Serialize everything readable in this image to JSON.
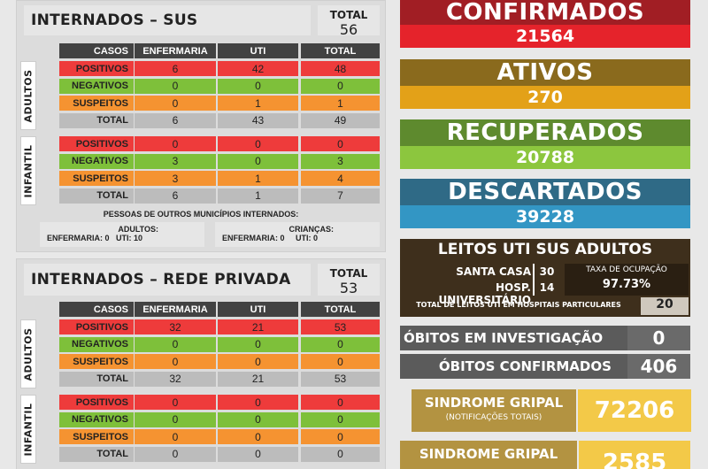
{
  "sus": {
    "title": "INTERNADOS – SUS",
    "total_label": "TOTAL",
    "total_value": "56",
    "headers": [
      "CASOS",
      "ENFERMARIA",
      "UTI",
      "TOTAL"
    ],
    "group_adult": "ADULTOS",
    "group_child": "INFANTIL",
    "adult_rows": [
      {
        "label": "POSITIVOS",
        "enf": "6",
        "uti": "42",
        "total": "48"
      },
      {
        "label": "NEGATIVOS",
        "enf": "0",
        "uti": "0",
        "total": "0"
      },
      {
        "label": "SUSPEITOS",
        "enf": "0",
        "uti": "1",
        "total": "1"
      },
      {
        "label": "TOTAL",
        "enf": "6",
        "uti": "43",
        "total": "49"
      }
    ],
    "child_rows": [
      {
        "label": "POSITIVOS",
        "enf": "0",
        "uti": "0",
        "total": "0"
      },
      {
        "label": "NEGATIVOS",
        "enf": "3",
        "uti": "0",
        "total": "3"
      },
      {
        "label": "SUSPEITOS",
        "enf": "3",
        "uti": "1",
        "total": "4"
      },
      {
        "label": "TOTAL",
        "enf": "6",
        "uti": "1",
        "total": "7"
      }
    ],
    "others_note": "PESSOAS DE OUTROS MUNICÍPIOS INTERNADOS:",
    "others_adults_label": "ADULTOS:",
    "others_adults_line": "ENFERMARIA: 0   UTI: 10",
    "others_children_label": "CRIANÇAS:",
    "others_children_line": "ENFERMARIA: 0     UTI: 0"
  },
  "priv": {
    "title": "INTERNADOS – REDE PRIVADA",
    "total_label": "TOTAL",
    "total_value": "53",
    "headers": [
      "CASOS",
      "ENFERMARIA",
      "UTI",
      "TOTAL"
    ],
    "group_adult": "ADULTOS",
    "group_child": "INFANTIL",
    "adult_rows": [
      {
        "label": "POSITIVOS",
        "enf": "32",
        "uti": "21",
        "total": "53"
      },
      {
        "label": "NEGATIVOS",
        "enf": "0",
        "uti": "0",
        "total": "0"
      },
      {
        "label": "SUSPEITOS",
        "enf": "0",
        "uti": "0",
        "total": "0"
      },
      {
        "label": "TOTAL",
        "enf": "32",
        "uti": "21",
        "total": "53"
      }
    ],
    "child_rows": [
      {
        "label": "POSITIVOS",
        "enf": "0",
        "uti": "0",
        "total": "0"
      },
      {
        "label": "NEGATIVOS",
        "enf": "0",
        "uti": "0",
        "total": "0"
      },
      {
        "label": "SUSPEITOS",
        "enf": "0",
        "uti": "0",
        "total": "0"
      },
      {
        "label": "TOTAL",
        "enf": "0",
        "uti": "0",
        "total": "0"
      }
    ]
  },
  "stats": {
    "confirmados": {
      "label": "CONFIRMADOS",
      "value": "21564"
    },
    "ativos": {
      "label": "ATIVOS",
      "value": "270"
    },
    "recuperados": {
      "label": "RECUPERADOS",
      "value": "20788"
    },
    "descartados": {
      "label": "DESCARTADOS",
      "value": "39228"
    }
  },
  "leitos": {
    "title": "LEITOS UTI SUS ADULTOS",
    "h1_name": "SANTA CASA",
    "h1_value": "30",
    "h2_name": "HOSP. UNIVERSITÁRIO",
    "h2_value": "14",
    "taxa_label": "TAXA DE OCUPAÇÃO",
    "taxa_value": "97.73%",
    "particulares_label": "TOTAL DE LEITOS UTI EM HOSPITAIS PARTICULARES",
    "particulares_value": "20"
  },
  "obitos": {
    "investigacao_label": "ÓBITOS EM INVESTIGAÇÃO",
    "investigacao_value": "0",
    "confirmados_label": "ÓBITOS CONFIRMADOS",
    "confirmados_value": "406"
  },
  "sindrome": {
    "label": "SINDROME GRIPAL",
    "sub": "(NOTIFICAÇÕES TOTAIS)",
    "value": "72206",
    "label2": "SINDROME GRIPAL",
    "value2": "2585"
  },
  "colors": {
    "confirmados_top": "#a11e24",
    "confirmados_bot": "#e5232b",
    "ativos_top": "#8a6a1d",
    "ativos_bot": "#e3a118",
    "recuperados_top": "#5e8a2e",
    "recuperados_bot": "#8cc63e",
    "descartados_top": "#2f6a86",
    "descartados_bot": "#3396c4",
    "leitos": "#3e2f1c",
    "obitos": "#5b5b5b",
    "sindrome": "#b39341",
    "sindrome_value": "#f3c948"
  }
}
